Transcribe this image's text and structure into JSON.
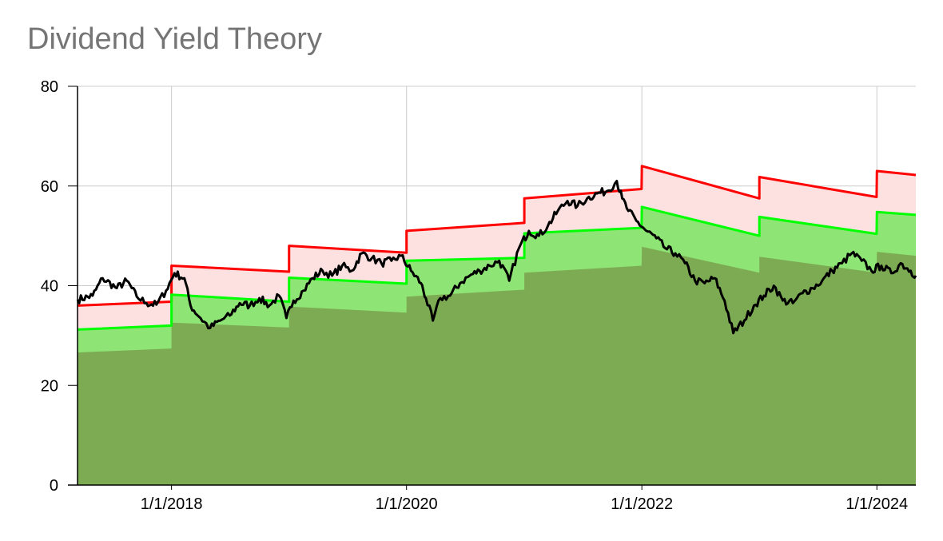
{
  "chart_data": {
    "type": "area",
    "title": "Dividend Yield Theory",
    "xlabel": "",
    "ylabel": "",
    "xlim": [
      "2017-03-15",
      "2024-05-01"
    ],
    "ylim": [
      0,
      80
    ],
    "y_ticks": [
      "0",
      "20",
      "40",
      "60",
      "80"
    ],
    "x_ticks": [
      {
        "date": "2018-01-01",
        "label": "1/1/2018"
      },
      {
        "date": "2020-01-01",
        "label": "1/1/2020"
      },
      {
        "date": "2022-01-01",
        "label": "1/1/2022"
      },
      {
        "date": "2024-01-01",
        "label": "1/1/2024"
      }
    ],
    "grid": true,
    "legend": "none",
    "colors": {
      "undervalued_band": "#7dab54",
      "fair_band": "#8ee474",
      "overvalued_band": "#fde0e0",
      "upper_line": "#ff0000",
      "middle_line": "#00ff00",
      "price_line": "#000000",
      "grid": "#cccccc"
    },
    "series": [
      {
        "role": "upper",
        "x": [
          "2017-03-15",
          "2018-01-01",
          "2018-01-01",
          "2019-01-01",
          "2019-01-01",
          "2020-01-01",
          "2020-01-01",
          "2021-01-01",
          "2021-01-01",
          "2021-12-31",
          "2022-01-01",
          "2023-01-01",
          "2023-01-01",
          "2023-12-31",
          "2024-01-01",
          "2024-05-01"
        ],
        "values": [
          36.0,
          36.8,
          44.0,
          42.8,
          48.0,
          46.6,
          51.0,
          52.6,
          57.5,
          59.4,
          64.0,
          57.5,
          61.8,
          57.8,
          63.0,
          62.2
        ]
      },
      {
        "role": "middle",
        "x": [
          "2017-03-15",
          "2018-01-01",
          "2018-01-01",
          "2019-01-01",
          "2019-01-01",
          "2020-01-01",
          "2020-01-01",
          "2021-01-01",
          "2021-01-01",
          "2021-12-31",
          "2022-01-01",
          "2023-01-01",
          "2023-01-01",
          "2023-12-31",
          "2024-01-01",
          "2024-05-01"
        ],
        "values": [
          31.2,
          32.0,
          38.2,
          36.8,
          41.6,
          40.4,
          45.0,
          45.6,
          50.5,
          51.6,
          55.8,
          50.0,
          53.8,
          50.4,
          54.8,
          54.2
        ]
      },
      {
        "role": "lower",
        "x": [
          "2017-03-15",
          "2018-01-01",
          "2018-01-01",
          "2019-01-01",
          "2019-01-01",
          "2020-01-01",
          "2020-01-01",
          "2021-01-01",
          "2021-01-01",
          "2021-12-31",
          "2022-01-01",
          "2023-01-01",
          "2023-01-01",
          "2023-12-31",
          "2024-01-01",
          "2024-05-01"
        ],
        "values": [
          26.6,
          27.4,
          32.6,
          31.6,
          35.8,
          34.6,
          37.8,
          39.2,
          42.6,
          44.0,
          47.8,
          42.6,
          45.8,
          42.6,
          46.8,
          46.0
        ]
      },
      {
        "role": "price",
        "x": [
          "2017-03-15",
          "2017-05-01",
          "2017-06-01",
          "2017-07-15",
          "2017-08-15",
          "2017-09-15",
          "2017-10-15",
          "2017-11-15",
          "2017-12-15",
          "2018-01-10",
          "2018-02-10",
          "2018-03-01",
          "2018-04-01",
          "2018-05-01",
          "2018-06-01",
          "2018-07-01",
          "2018-08-01",
          "2018-09-01",
          "2018-10-01",
          "2018-11-01",
          "2018-12-01",
          "2018-12-24",
          "2019-01-15",
          "2019-02-15",
          "2019-03-15",
          "2019-04-15",
          "2019-05-15",
          "2019-06-15",
          "2019-07-15",
          "2019-08-15",
          "2019-09-15",
          "2019-10-15",
          "2019-11-15",
          "2019-12-15",
          "2020-01-15",
          "2020-02-15",
          "2020-03-01",
          "2020-03-23",
          "2020-04-15",
          "2020-05-15",
          "2020-06-15",
          "2020-07-15",
          "2020-08-15",
          "2020-09-15",
          "2020-10-15",
          "2020-11-15",
          "2020-12-15",
          "2021-01-15",
          "2021-02-15",
          "2021-03-15",
          "2021-04-15",
          "2021-05-15",
          "2021-06-15",
          "2021-07-15",
          "2021-08-15",
          "2021-09-15",
          "2021-10-15",
          "2021-11-01",
          "2021-11-20",
          "2021-12-15",
          "2022-01-15",
          "2022-02-15",
          "2022-03-15",
          "2022-04-15",
          "2022-05-15",
          "2022-06-15",
          "2022-07-15",
          "2022-08-15",
          "2022-09-15",
          "2022-10-12",
          "2022-11-15",
          "2022-12-15",
          "2023-01-15",
          "2023-02-15",
          "2023-03-15",
          "2023-04-15",
          "2023-05-15",
          "2023-06-15",
          "2023-07-15",
          "2023-08-15",
          "2023-09-15",
          "2023-10-15",
          "2023-11-15",
          "2023-12-15",
          "2024-01-15",
          "2024-02-15",
          "2024-03-15",
          "2024-04-15",
          "2024-05-01"
        ],
        "values": [
          37.2,
          38.0,
          41.5,
          39.5,
          41.0,
          37.8,
          36.5,
          36.2,
          39.0,
          42.5,
          41.5,
          36.0,
          33.5,
          31.5,
          33.0,
          34.0,
          36.5,
          36.0,
          37.5,
          36.0,
          38.0,
          33.5,
          37.0,
          39.0,
          41.5,
          43.0,
          42.0,
          44.0,
          43.0,
          46.5,
          45.5,
          44.5,
          45.0,
          46.0,
          43.0,
          40.5,
          37.5,
          33.0,
          37.5,
          38.0,
          40.5,
          42.0,
          43.0,
          44.0,
          45.0,
          41.0,
          47.5,
          51.0,
          50.0,
          52.0,
          55.0,
          57.0,
          56.0,
          57.5,
          58.5,
          59.0,
          61.0,
          57.5,
          55.0,
          53.0,
          51.0,
          49.5,
          47.5,
          46.5,
          44.5,
          41.0,
          40.5,
          41.5,
          37.0,
          30.5,
          33.0,
          36.0,
          38.0,
          40.0,
          37.0,
          36.5,
          38.5,
          39.5,
          41.0,
          43.0,
          44.5,
          46.5,
          45.0,
          43.0,
          44.0,
          42.5,
          44.5,
          43.0,
          42.0
        ]
      }
    ]
  }
}
